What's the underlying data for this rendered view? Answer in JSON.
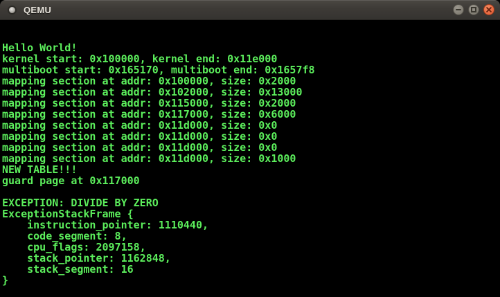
{
  "window": {
    "title": "QEMU"
  },
  "titlebar": {
    "icons": {
      "app": "qemu-window-icon",
      "minimize": "minimize-icon",
      "maximize": "maximize-icon",
      "close": "close-icon"
    }
  },
  "console": {
    "lines": [
      "Hello World!",
      "kernel start: 0x100000, kernel end: 0x11e000",
      "multiboot start: 0x165170, multiboot end: 0x1657f8",
      "mapping section at addr: 0x100000, size: 0x2000",
      "mapping section at addr: 0x102000, size: 0x13000",
      "mapping section at addr: 0x115000, size: 0x2000",
      "mapping section at addr: 0x117000, size: 0x6000",
      "mapping section at addr: 0x11d000, size: 0x0",
      "mapping section at addr: 0x11d000, size: 0x0",
      "mapping section at addr: 0x11d000, size: 0x0",
      "mapping section at addr: 0x11d000, size: 0x1000",
      "NEW TABLE!!!",
      "guard page at 0x117000",
      "",
      "EXCEPTION: DIVIDE BY ZERO",
      "ExceptionStackFrame {",
      "    instruction_pointer: 1110440,",
      "    code_segment: 8,",
      "    cpu_flags: 2097158,",
      "    stack_pointer: 1162848,",
      "    stack_segment: 16",
      "}"
    ]
  },
  "colors": {
    "console_bg": "#000000",
    "console_text": "#5cee5c",
    "titlebar_bg": "#3e3b37",
    "titlebar_text": "#e6e2da",
    "close_button": "#ea6a41",
    "control_button": "#868278"
  }
}
